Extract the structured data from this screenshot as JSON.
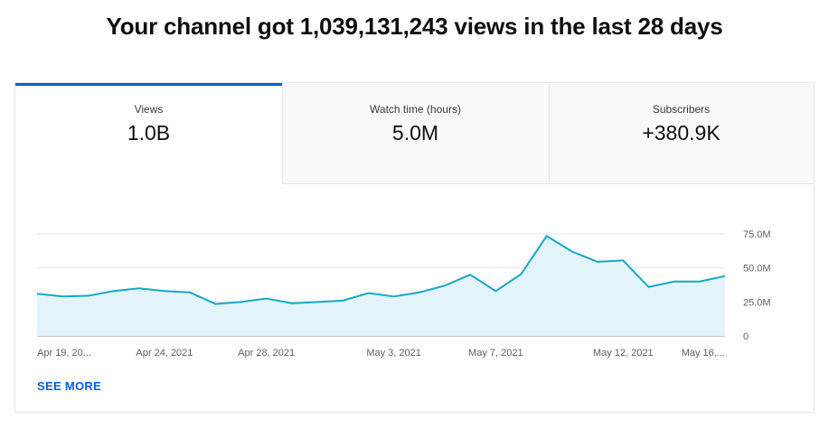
{
  "headline": "Your channel got 1,039,131,243 views in the last 28 days",
  "tabs": [
    {
      "label": "Views",
      "value": "1.0B"
    },
    {
      "label": "Watch time (hours)",
      "value": "5.0M"
    },
    {
      "label": "Subscribers",
      "value": "+380.9K"
    }
  ],
  "see_more": "SEE MORE",
  "colors": {
    "accent": "#065fd4",
    "line": "#14a8c8",
    "fill": "#e3f5fa"
  },
  "chart_data": {
    "type": "area",
    "title": "",
    "xlabel": "",
    "ylabel": "",
    "ylim": [
      0,
      75000000
    ],
    "y_ticks": [
      0,
      25000000,
      50000000,
      75000000
    ],
    "y_tick_labels": [
      "0",
      "25.0M",
      "50.0M",
      "75.0M"
    ],
    "y_axis_position": "right",
    "x_tick_labels": [
      "Apr 19, 20...",
      "Apr 24, 2021",
      "Apr 28, 2021",
      "May 3, 2021",
      "May 7, 2021",
      "May 12, 2021",
      "May 16,..."
    ],
    "x_tick_indices": [
      0,
      5,
      9,
      14,
      18,
      23,
      27
    ],
    "series": [
      {
        "values": [
          31000000,
          29000000,
          29500000,
          33000000,
          35000000,
          33000000,
          32000000,
          23500000,
          25000000,
          27500000,
          24000000,
          25000000,
          26000000,
          31500000,
          29000000,
          32000000,
          37000000,
          45000000,
          33000000,
          45500000,
          73500000,
          62000000,
          54500000,
          55500000,
          36000000,
          40000000,
          40000000,
          44000000
        ]
      }
    ],
    "grid": true
  }
}
